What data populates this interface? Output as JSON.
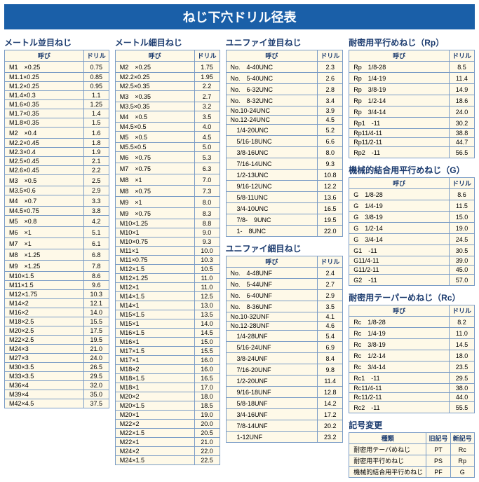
{
  "title": "ねじ下穴ドリル径表",
  "headers": {
    "size": "呼び",
    "drill": "ドリル"
  },
  "tables": {
    "metric_coarse": {
      "title": "メートル並目ねじ",
      "rows": [
        [
          "M1　×0.25",
          "0.75"
        ],
        [
          "M1.1×0.25",
          "0.85"
        ],
        [
          "M1.2×0.25",
          "0.95"
        ],
        [
          "M1.4×0.3",
          "1.1"
        ],
        [
          "M1.6×0.35",
          "1.25"
        ],
        [
          "M1.7×0.35",
          "1.4"
        ],
        [
          "M1.8×0.35",
          "1.5"
        ],
        [
          "M2　×0.4",
          "1.6"
        ],
        [
          "M2.2×0.45",
          "1.8"
        ],
        [
          "M2.3×0.4",
          "1.9"
        ],
        [
          "M2.5×0.45",
          "2.1"
        ],
        [
          "M2.6×0.45",
          "2.2"
        ],
        [
          "M3　×0.5",
          "2.5"
        ],
        [
          "M3.5×0.6",
          "2.9"
        ],
        [
          "M4　×0.7",
          "3.3"
        ],
        [
          "M4.5×0.75",
          "3.8"
        ],
        [
          "M5　×0.8",
          "4.2"
        ],
        [
          "M6　×1",
          "5.1"
        ],
        [
          "M7　×1",
          "6.1"
        ],
        [
          "M8　×1.25",
          "6.8"
        ],
        [
          "M9　×1.25",
          "7.8"
        ],
        [
          "M10×1.5",
          "8.6"
        ],
        [
          "M11×1.5",
          "9.6"
        ],
        [
          "M12×1.75",
          "10.3"
        ],
        [
          "M14×2",
          "12.1"
        ],
        [
          "M16×2",
          "14.0"
        ],
        [
          "M18×2.5",
          "15.5"
        ],
        [
          "M20×2.5",
          "17.5"
        ],
        [
          "M22×2.5",
          "19.5"
        ],
        [
          "M24×3",
          "21.0"
        ],
        [
          "M27×3",
          "24.0"
        ],
        [
          "M30×3.5",
          "26.5"
        ],
        [
          "M33×3.5",
          "29.5"
        ],
        [
          "M36×4",
          "32.0"
        ],
        [
          "M39×4",
          "35.0"
        ],
        [
          "M42×4.5",
          "37.5"
        ]
      ]
    },
    "metric_fine": {
      "title": "メートル細目ねじ",
      "rows": [
        [
          "M2　×0.25",
          "1.75"
        ],
        [
          "M2.2×0.25",
          "1.95"
        ],
        [
          "M2.5×0.35",
          "2.2"
        ],
        [
          "M3　×0.35",
          "2.7"
        ],
        [
          "M3.5×0.35",
          "3.2"
        ],
        [
          "M4　×0.5",
          "3.5"
        ],
        [
          "M4.5×0.5",
          "4.0"
        ],
        [
          "M5　×0.5",
          "4.5"
        ],
        [
          "M5.5×0.5",
          "5.0"
        ],
        [
          "M6　×0.75",
          "5.3"
        ],
        [
          "M7　×0.75",
          "6.3"
        ],
        [
          "M8　×1",
          "7.0"
        ],
        [
          "M8　×0.75",
          "7.3"
        ],
        [
          "M9　×1",
          "8.0"
        ],
        [
          "M9　×0.75",
          "8.3"
        ],
        [
          "M10×1.25",
          "8.8"
        ],
        [
          "M10×1",
          "9.0"
        ],
        [
          "M10×0.75",
          "9.3"
        ],
        [
          "M11×1",
          "10.0"
        ],
        [
          "M11×0.75",
          "10.3"
        ],
        [
          "M12×1.5",
          "10.5"
        ],
        [
          "M12×1.25",
          "11.0"
        ],
        [
          "M12×1",
          "11.0"
        ],
        [
          "M14×1.5",
          "12.5"
        ],
        [
          "M14×1",
          "13.0"
        ],
        [
          "M15×1.5",
          "13.5"
        ],
        [
          "M15×1",
          "14.0"
        ],
        [
          "M16×1.5",
          "14.5"
        ],
        [
          "M16×1",
          "15.0"
        ],
        [
          "M17×1.5",
          "15.5"
        ],
        [
          "M17×1",
          "16.0"
        ],
        [
          "M18×2",
          "16.0"
        ],
        [
          "M18×1.5",
          "16.5"
        ],
        [
          "M18×1",
          "17.0"
        ],
        [
          "M20×2",
          "18.0"
        ],
        [
          "M20×1.5",
          "18.5"
        ],
        [
          "M20×1",
          "19.0"
        ],
        [
          "M22×2",
          "20.0"
        ],
        [
          "M22×1.5",
          "20.5"
        ],
        [
          "M22×1",
          "21.0"
        ],
        [
          "M24×2",
          "22.0"
        ],
        [
          "M24×1.5",
          "22.5"
        ]
      ]
    },
    "unified_coarse": {
      "title": "ユニファイ並目ねじ",
      "rows": [
        [
          "No.　4-40UNC",
          "2.3"
        ],
        [
          "No.　5-40UNC",
          "2.6"
        ],
        [
          "No.　6-32UNC",
          "2.8"
        ],
        [
          "No.　8-32UNC",
          "3.4"
        ],
        [
          "No.10-24UNC",
          "3.9"
        ],
        [
          "No.12-24UNC",
          "4.5"
        ],
        [
          "　1/4-20UNC",
          "5.2"
        ],
        [
          "　5/16-18UNC",
          "6.6"
        ],
        [
          "　3/8-16UNC",
          "8.0"
        ],
        [
          "　7/16-14UNC",
          "9.3"
        ],
        [
          "　1/2-13UNC",
          "10.8"
        ],
        [
          "　9/16-12UNC",
          "12.2"
        ],
        [
          "　5/8-11UNC",
          "13.6"
        ],
        [
          "　3/4-10UNC",
          "16.5"
        ],
        [
          "　7/8-　9UNC",
          "19.5"
        ],
        [
          "　1-　8UNC",
          "22.0"
        ]
      ]
    },
    "unified_fine": {
      "title": "ユニファイ細目ねじ",
      "rows": [
        [
          "No.　4-48UNF",
          "2.4"
        ],
        [
          "No.　5-44UNF",
          "2.7"
        ],
        [
          "No.　6-40UNF",
          "2.9"
        ],
        [
          "No.　8-36UNF",
          "3.5"
        ],
        [
          "No.10-32UNF",
          "4.1"
        ],
        [
          "No.12-28UNF",
          "4.6"
        ],
        [
          "　1/4-28UNF",
          "5.4"
        ],
        [
          "　5/16-24UNF",
          "6.9"
        ],
        [
          "　3/8-24UNF",
          "8.4"
        ],
        [
          "　7/16-20UNF",
          "9.8"
        ],
        [
          "　1/2-20UNF",
          "11.4"
        ],
        [
          "　9/16-18UNF",
          "12.8"
        ],
        [
          "　5/8-18UNF",
          "14.2"
        ],
        [
          "　3/4-16UNF",
          "17.2"
        ],
        [
          "　7/8-14UNF",
          "20.2"
        ],
        [
          "　1-12UNF",
          "23.2"
        ]
      ]
    },
    "rp": {
      "title": "耐密用平行めねじ（Rp）",
      "rows": [
        [
          "Rp　1/8-28",
          "8.5"
        ],
        [
          "Rp　1/4-19",
          "11.4"
        ],
        [
          "Rp　3/8-19",
          "14.9"
        ],
        [
          "Rp　1/2-14",
          "18.6"
        ],
        [
          "Rp　3/4-14",
          "24.0"
        ],
        [
          "Rp1　-11",
          "30.2"
        ],
        [
          "Rp11/4-11",
          "38.8"
        ],
        [
          "Rp11/2-11",
          "44.7"
        ],
        [
          "Rp2　-11",
          "56.5"
        ]
      ]
    },
    "g": {
      "title": "機械的結合用平行めねじ（G）",
      "rows": [
        [
          "G　1/8-28",
          "8.6"
        ],
        [
          "G　1/4-19",
          "11.5"
        ],
        [
          "G　3/8-19",
          "15.0"
        ],
        [
          "G　1/2-14",
          "19.0"
        ],
        [
          "G　3/4-14",
          "24.5"
        ],
        [
          "G1　-11",
          "30.5"
        ],
        [
          "G11/4-11",
          "39.0"
        ],
        [
          "G11/2-11",
          "45.0"
        ],
        [
          "G2　-11",
          "57.0"
        ]
      ]
    },
    "rc": {
      "title": "耐密用テーパーめねじ（Rc）",
      "rows": [
        [
          "Rc　1/8-28",
          "8.2"
        ],
        [
          "Rc　1/4-19",
          "11.0"
        ],
        [
          "Rc　3/8-19",
          "14.5"
        ],
        [
          "Rc　1/2-14",
          "18.0"
        ],
        [
          "Rc　3/4-14",
          "23.5"
        ],
        [
          "Rc1　-11",
          "29.5"
        ],
        [
          "Rc11/4-11",
          "38.0"
        ],
        [
          "Rc11/2-11",
          "44.0"
        ],
        [
          "Rc2　-11",
          "55.5"
        ]
      ]
    }
  },
  "symbol_change": {
    "title": "記号変更",
    "headers": [
      "種類",
      "旧記号",
      "新記号"
    ],
    "rows": [
      [
        "耐密用テーパめねじ",
        "PT",
        "Rc"
      ],
      [
        "耐密用平行めねじ",
        "PS",
        "Rp"
      ],
      [
        "機械的結合用平行めねじ",
        "PF",
        "G"
      ]
    ]
  }
}
